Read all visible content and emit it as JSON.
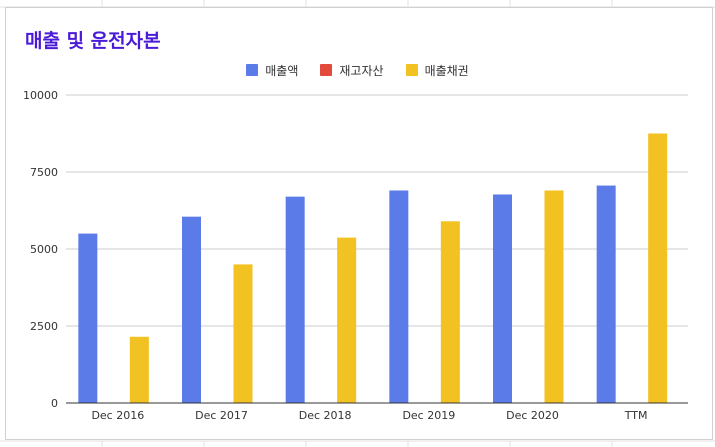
{
  "chart_data": {
    "type": "bar",
    "title": "매출 및 운전자본",
    "categories": [
      "Dec 2016",
      "Dec 2017",
      "Dec 2018",
      "Dec 2019",
      "Dec 2020",
      "TTM"
    ],
    "series": [
      {
        "name": "매출액",
        "color": "#5b7be9",
        "values": [
          5500,
          6050,
          6700,
          6900,
          6770,
          7060
        ]
      },
      {
        "name": "재고자산",
        "color": "#e34a3b",
        "values": [
          0,
          0,
          0,
          0,
          0,
          0
        ]
      },
      {
        "name": "매출채권",
        "color": "#f2c122",
        "values": [
          2150,
          4500,
          5370,
          5900,
          6900,
          8750
        ]
      }
    ],
    "ylim": [
      0,
      10000
    ],
    "yticks": [
      0,
      2500,
      5000,
      7500,
      10000
    ],
    "xlabel": "",
    "ylabel": "",
    "grid": true,
    "legend_position": "top"
  }
}
